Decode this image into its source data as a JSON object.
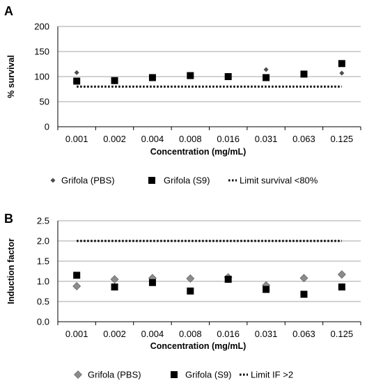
{
  "panels": [
    {
      "panel_label": "A",
      "chart_data": {
        "type": "scatter",
        "title": "",
        "xlabel": "Concentration (mg/mL)",
        "ylabel": "% survival",
        "categories": [
          "0.001",
          "0.002",
          "0.004",
          "0.008",
          "0.016",
          "0.031",
          "0.063",
          "0.125"
        ],
        "ylim": [
          0,
          200
        ],
        "yticks": [
          "0",
          "50",
          "100",
          "150",
          "200"
        ],
        "grid": true,
        "legend_position": "bottom",
        "series": [
          {
            "name": "Grifola (PBS)",
            "marker": "small-diamond",
            "color": "#4d4d4d",
            "values": [
              108,
              null,
              null,
              null,
              null,
              114,
              null,
              107
            ]
          },
          {
            "name": "Grifola (S9)",
            "marker": "square",
            "color": "#000000",
            "values": [
              91,
              92,
              98,
              102,
              100,
              98,
              105,
              126
            ]
          },
          {
            "name": "Limit survival <80%",
            "marker": "dotted-line",
            "color": "#000000",
            "values": [
              80,
              80,
              80,
              80,
              80,
              80,
              80,
              80
            ]
          }
        ]
      }
    },
    {
      "panel_label": "B",
      "chart_data": {
        "type": "scatter",
        "title": "",
        "xlabel": "Concentration (mg/mL)",
        "ylabel": "Induction factor",
        "categories": [
          "0.001",
          "0.002",
          "0.004",
          "0.008",
          "0.016",
          "0.031",
          "0.063",
          "0.125"
        ],
        "ylim": [
          0,
          2.5
        ],
        "yticks": [
          "0.0",
          "0.5",
          "1.0",
          "1.5",
          "2.0",
          "2.5"
        ],
        "grid": true,
        "legend_position": "bottom",
        "series": [
          {
            "name": "Grifola (PBS)",
            "marker": "diamond",
            "color": "#8c8c8c",
            "values": [
              0.88,
              1.05,
              1.08,
              1.07,
              1.1,
              0.9,
              1.08,
              1.17
            ]
          },
          {
            "name": "Grifola (S9)",
            "marker": "square",
            "color": "#000000",
            "values": [
              1.15,
              0.86,
              0.97,
              0.76,
              1.05,
              0.8,
              0.68,
              0.86
            ]
          },
          {
            "name": "Limit IF >2",
            "marker": "dotted-line",
            "color": "#000000",
            "values": [
              2,
              2,
              2,
              2,
              2,
              2,
              2,
              2
            ]
          }
        ]
      }
    }
  ]
}
